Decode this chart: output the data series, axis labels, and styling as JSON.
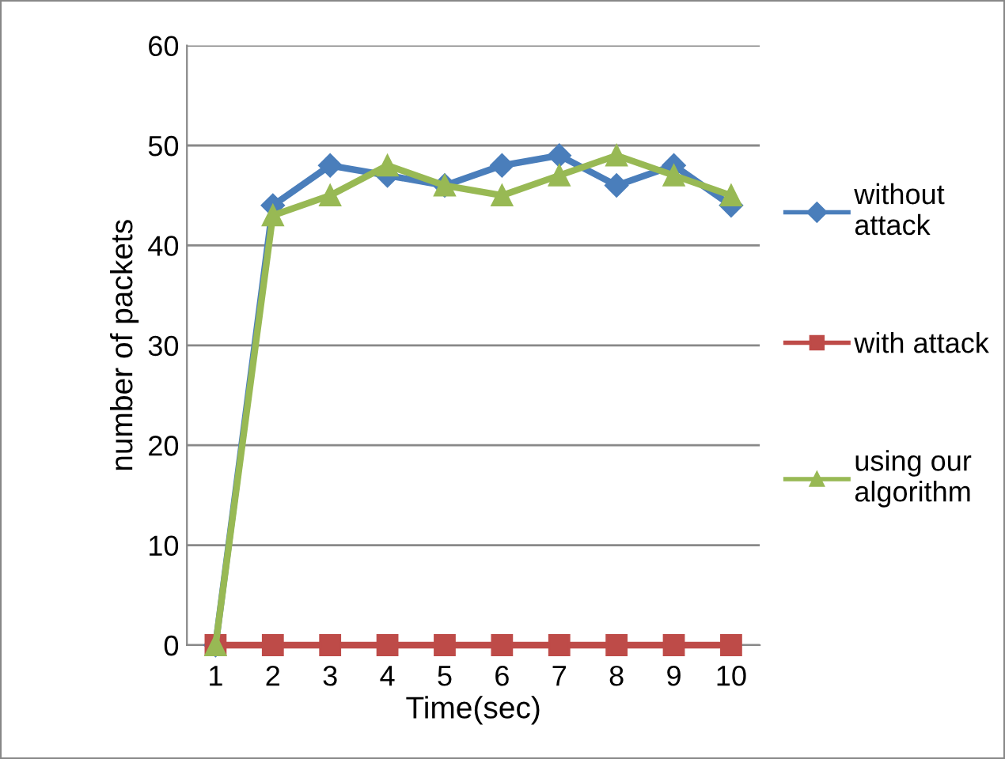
{
  "chart_data": {
    "type": "line",
    "xlabel": "Time(sec)",
    "ylabel": "number of packets",
    "categories": [
      "1",
      "2",
      "3",
      "4",
      "5",
      "6",
      "7",
      "8",
      "9",
      "10"
    ],
    "ylim": [
      0,
      60
    ],
    "yticks": [
      0,
      10,
      20,
      30,
      40,
      50,
      60
    ],
    "grid": "y",
    "legend": "right",
    "series": [
      {
        "name": "without attack",
        "color": "#4a7ebb",
        "marker": "diamond",
        "values": [
          0,
          44,
          48,
          47,
          46,
          48,
          49,
          46,
          48,
          44
        ]
      },
      {
        "name": "with attack",
        "color": "#be4b48",
        "marker": "square",
        "values": [
          0,
          0,
          0,
          0,
          0,
          0,
          0,
          0,
          0,
          0
        ]
      },
      {
        "name": "using our algorithm",
        "color": "#98b954",
        "marker": "triangle",
        "values": [
          0,
          43,
          45,
          48,
          46,
          45,
          47,
          49,
          47,
          45
        ]
      }
    ]
  }
}
